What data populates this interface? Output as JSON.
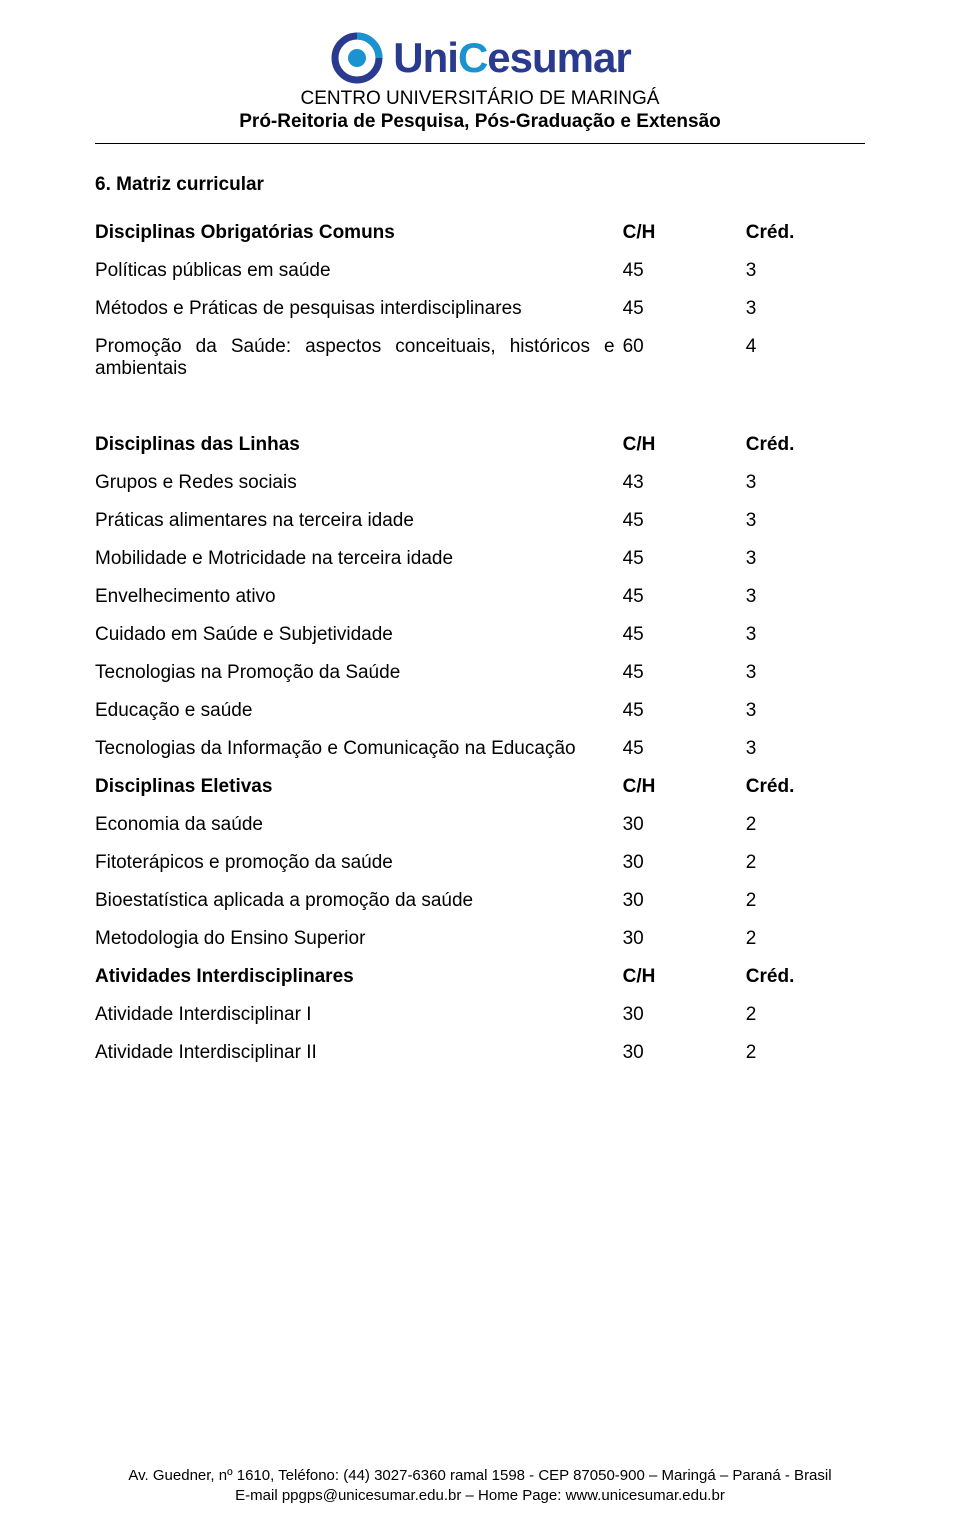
{
  "doc": {
    "logo": {
      "brand_uni": "Uni",
      "brand_c": "C",
      "brand_tail": "esumar"
    },
    "institution_line": "CENTRO UNIVERSITÁRIO DE MARINGÁ",
    "institution_sub": "Pró-Reitoria de Pesquisa, Pós-Graduação e Extensão",
    "section_title": "6. Matriz curricular",
    "footer_line1": "Av. Guedner, nº 1610, Teléfono: (44) 3027-6360 ramal 1598 - CEP 87050-900 – Maringá – Paraná - Brasil",
    "footer_line2": "E-mail ppgps@unicesumar.edu.br – Home Page: www.unicesumar.edu.br"
  },
  "colors": {
    "logo_navy": "#2a3b8f",
    "logo_cyan": "#1a94d0",
    "text": "#000000",
    "rule": "#000000",
    "bg": "#ffffff"
  },
  "typography": {
    "body_pt": 19,
    "footer_pt": 15,
    "logo_pt": 42,
    "font_family": "Arial"
  },
  "tables": {
    "col_widths_pct": [
      68,
      16,
      16
    ],
    "groups": [
      {
        "header": {
          "label": "Disciplinas Obrigatórias Comuns",
          "ch": "C/H",
          "cred": "Créd."
        },
        "rows": [
          {
            "label": "Políticas públicas em saúde",
            "ch": "45",
            "cred": "3"
          },
          {
            "label": "Métodos e Práticas de pesquisas interdisciplinares",
            "ch": "45",
            "cred": "3"
          },
          {
            "label": "Promoção da Saúde: aspectos conceituais, históricos e ambientais",
            "ch": "60",
            "cred": "4"
          }
        ]
      },
      {
        "header": {
          "label": "Disciplinas das Linhas",
          "ch": "C/H",
          "cred": "Créd."
        },
        "rows": [
          {
            "label": "Grupos e Redes sociais",
            "ch": "43",
            "cred": "3"
          },
          {
            "label": "Práticas alimentares na terceira idade",
            "ch": "45",
            "cred": "3"
          },
          {
            "label": "Mobilidade e Motricidade na terceira idade",
            "ch": "45",
            "cred": "3"
          },
          {
            "label": "Envelhecimento ativo",
            "ch": "45",
            "cred": "3"
          },
          {
            "label": "Cuidado em Saúde e Subjetividade",
            "ch": "45",
            "cred": "3"
          },
          {
            "label": "Tecnologias na Promoção da Saúde",
            "ch": "45",
            "cred": "3"
          },
          {
            "label": "Educação e saúde",
            "ch": "45",
            "cred": "3"
          },
          {
            "label": "Tecnologias da Informação e Comunicação na Educação",
            "ch": "45",
            "cred": "3"
          }
        ]
      },
      {
        "header": {
          "label": "Disciplinas Eletivas",
          "ch": "C/H",
          "cred": "Créd."
        },
        "rows": [
          {
            "label": "Economia da saúde",
            "ch": "30",
            "cred": "2"
          },
          {
            "label": "Fitoterápicos e promoção da saúde",
            "ch": "30",
            "cred": "2"
          },
          {
            "label": "Bioestatística aplicada a promoção da saúde",
            "ch": "30",
            "cred": "2"
          },
          {
            "label": "Metodologia do Ensino Superior",
            "ch": "30",
            "cred": "2"
          }
        ]
      },
      {
        "header": {
          "label": "Atividades Interdisciplinares",
          "ch": "C/H",
          "cred": "Créd."
        },
        "rows": [
          {
            "label": "Atividade Interdisciplinar I",
            "ch": "30",
            "cred": "2"
          },
          {
            "label": "Atividade Interdisciplinar II",
            "ch": "30",
            "cred": "2"
          }
        ]
      }
    ]
  }
}
